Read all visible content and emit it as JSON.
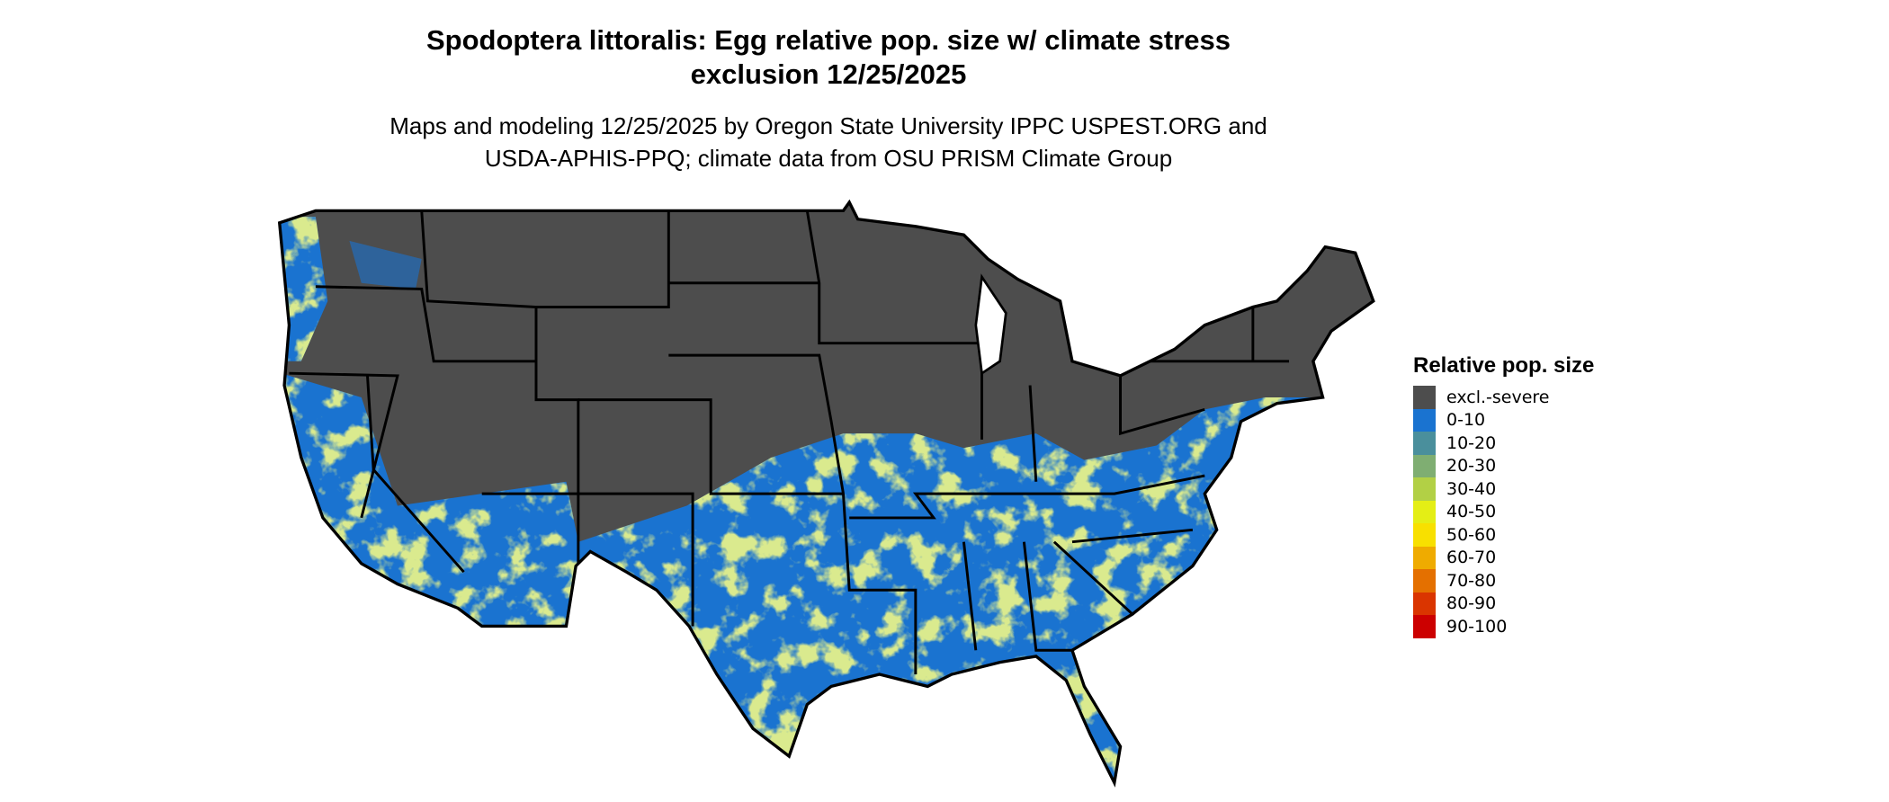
{
  "title_line1": "Spodoptera littoralis: Egg relative pop. size w/ climate stress",
  "title_line2": "exclusion 12/25/2025",
  "subtitle_line1": "Maps and modeling 12/25/2025 by Oregon State University IPPC USPEST.ORG and",
  "subtitle_line2": "USDA-APHIS-PPQ; climate data from OSU PRISM Climate Group",
  "legend": {
    "title": "Relative pop. size",
    "items": [
      {
        "label": "excl.-severe",
        "color": "#4d4d4d"
      },
      {
        "label": "0-10",
        "color": "#1a73d0"
      },
      {
        "label": "10-20",
        "color": "#4a8f9c"
      },
      {
        "label": "20-30",
        "color": "#7fae72"
      },
      {
        "label": "30-40",
        "color": "#b2d045"
      },
      {
        "label": "40-50",
        "color": "#e4ee15"
      },
      {
        "label": "50-60",
        "color": "#f8e000"
      },
      {
        "label": "60-70",
        "color": "#efab00"
      },
      {
        "label": "70-80",
        "color": "#e47000"
      },
      {
        "label": "80-90",
        "color": "#da3500"
      },
      {
        "label": "90-100",
        "color": "#cc0000"
      }
    ]
  }
}
